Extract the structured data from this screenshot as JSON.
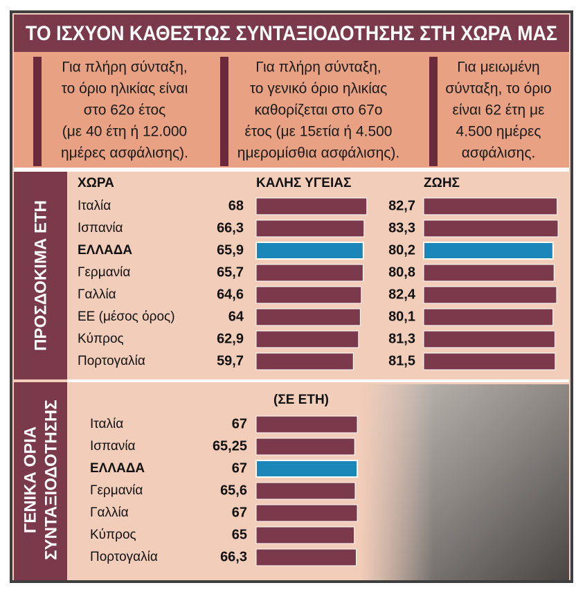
{
  "title": "ΤΟ ΙΣΧΥΟΝ ΚΑΘΕΣΤΩΣ ΣΥΝΤΑΞΙΟΔΟΤΗΣΗΣ ΣΤΗ ΧΩΡΑ ΜΑΣ",
  "notes": [
    [
      "Για πλήρη σύνταξη,",
      "το όριο ηλικίας είναι",
      "στο 62ο έτος",
      "(με 40 έτη ή 12.000",
      "ημέρες ασφάλισης)."
    ],
    [
      "Για πλήρη σύνταξη,",
      "το γενικό όριο ηλικίας",
      "καθορίζεται στο 67ο",
      "έτος (με 15ετία ή 4.500",
      "ημερομίσθια ασφάλισης)."
    ],
    [
      "Για μειωμένη",
      "σύνταξη, το όριο",
      "είναι 62 έτη με",
      "4.500 ημέρες",
      "ασφάλισης."
    ]
  ],
  "chart_data": [
    {
      "type": "bar",
      "orientation": "horizontal",
      "side_label": [
        "ΠΡΟΣΔΟΚΙΜΑ ΕΤΗ"
      ],
      "category_header": "ΧΩΡΑ",
      "categories": [
        "Ιταλία",
        "Ισπανία",
        "ΕΛΛΑΔΑ",
        "Γερμανία",
        "Γαλλία",
        "ΕΕ (μέσος όρος)",
        "Κύπρος",
        "Πορτογαλία"
      ],
      "highlight_index": 2,
      "highlight_color": "#1b86b8",
      "series": [
        {
          "name": "ΚΑΛΗΣ ΥΓΕΙΑΣ",
          "color": "#7b3a4c",
          "values": [
            68,
            66.3,
            65.9,
            65.7,
            64.6,
            64,
            62.9,
            59.7
          ],
          "value_labels": [
            "68",
            "66,3",
            "65,9",
            "65,7",
            "64,6",
            "64",
            "62,9",
            "59,7"
          ]
        },
        {
          "name": "ΖΩΗΣ",
          "color": "#7b3a4c",
          "values": [
            82.7,
            83.3,
            80.2,
            80.8,
            82.4,
            80.1,
            81.3,
            81.5
          ],
          "value_labels": [
            "82,7",
            "83,3",
            "80,2",
            "80,8",
            "82,4",
            "80,1",
            "81,3",
            "81,5"
          ]
        }
      ]
    },
    {
      "type": "bar",
      "orientation": "horizontal",
      "side_label": [
        "ΓΕΝΙΚΑ ΟΡΙΑ",
        "ΣΥΝΤΑΞΙΟΔΟΤΗΣΗΣ"
      ],
      "subtitle": "(ΣΕ ΕΤΗ)",
      "categories": [
        "Ιταλία",
        "Ισπανία",
        "ΕΛΛΑΔΑ",
        "Γερμανία",
        "Γαλλία",
        "Κύπρος",
        "Πορτογαλία"
      ],
      "highlight_index": 2,
      "highlight_color": "#1b86b8",
      "series": [
        {
          "color": "#7b3a4c",
          "values": [
            67,
            65.25,
            67,
            65.6,
            67,
            65,
            66.3
          ],
          "value_labels": [
            "67",
            "65,25",
            "67",
            "65,6",
            "67",
            "65",
            "66,3"
          ]
        }
      ]
    }
  ]
}
